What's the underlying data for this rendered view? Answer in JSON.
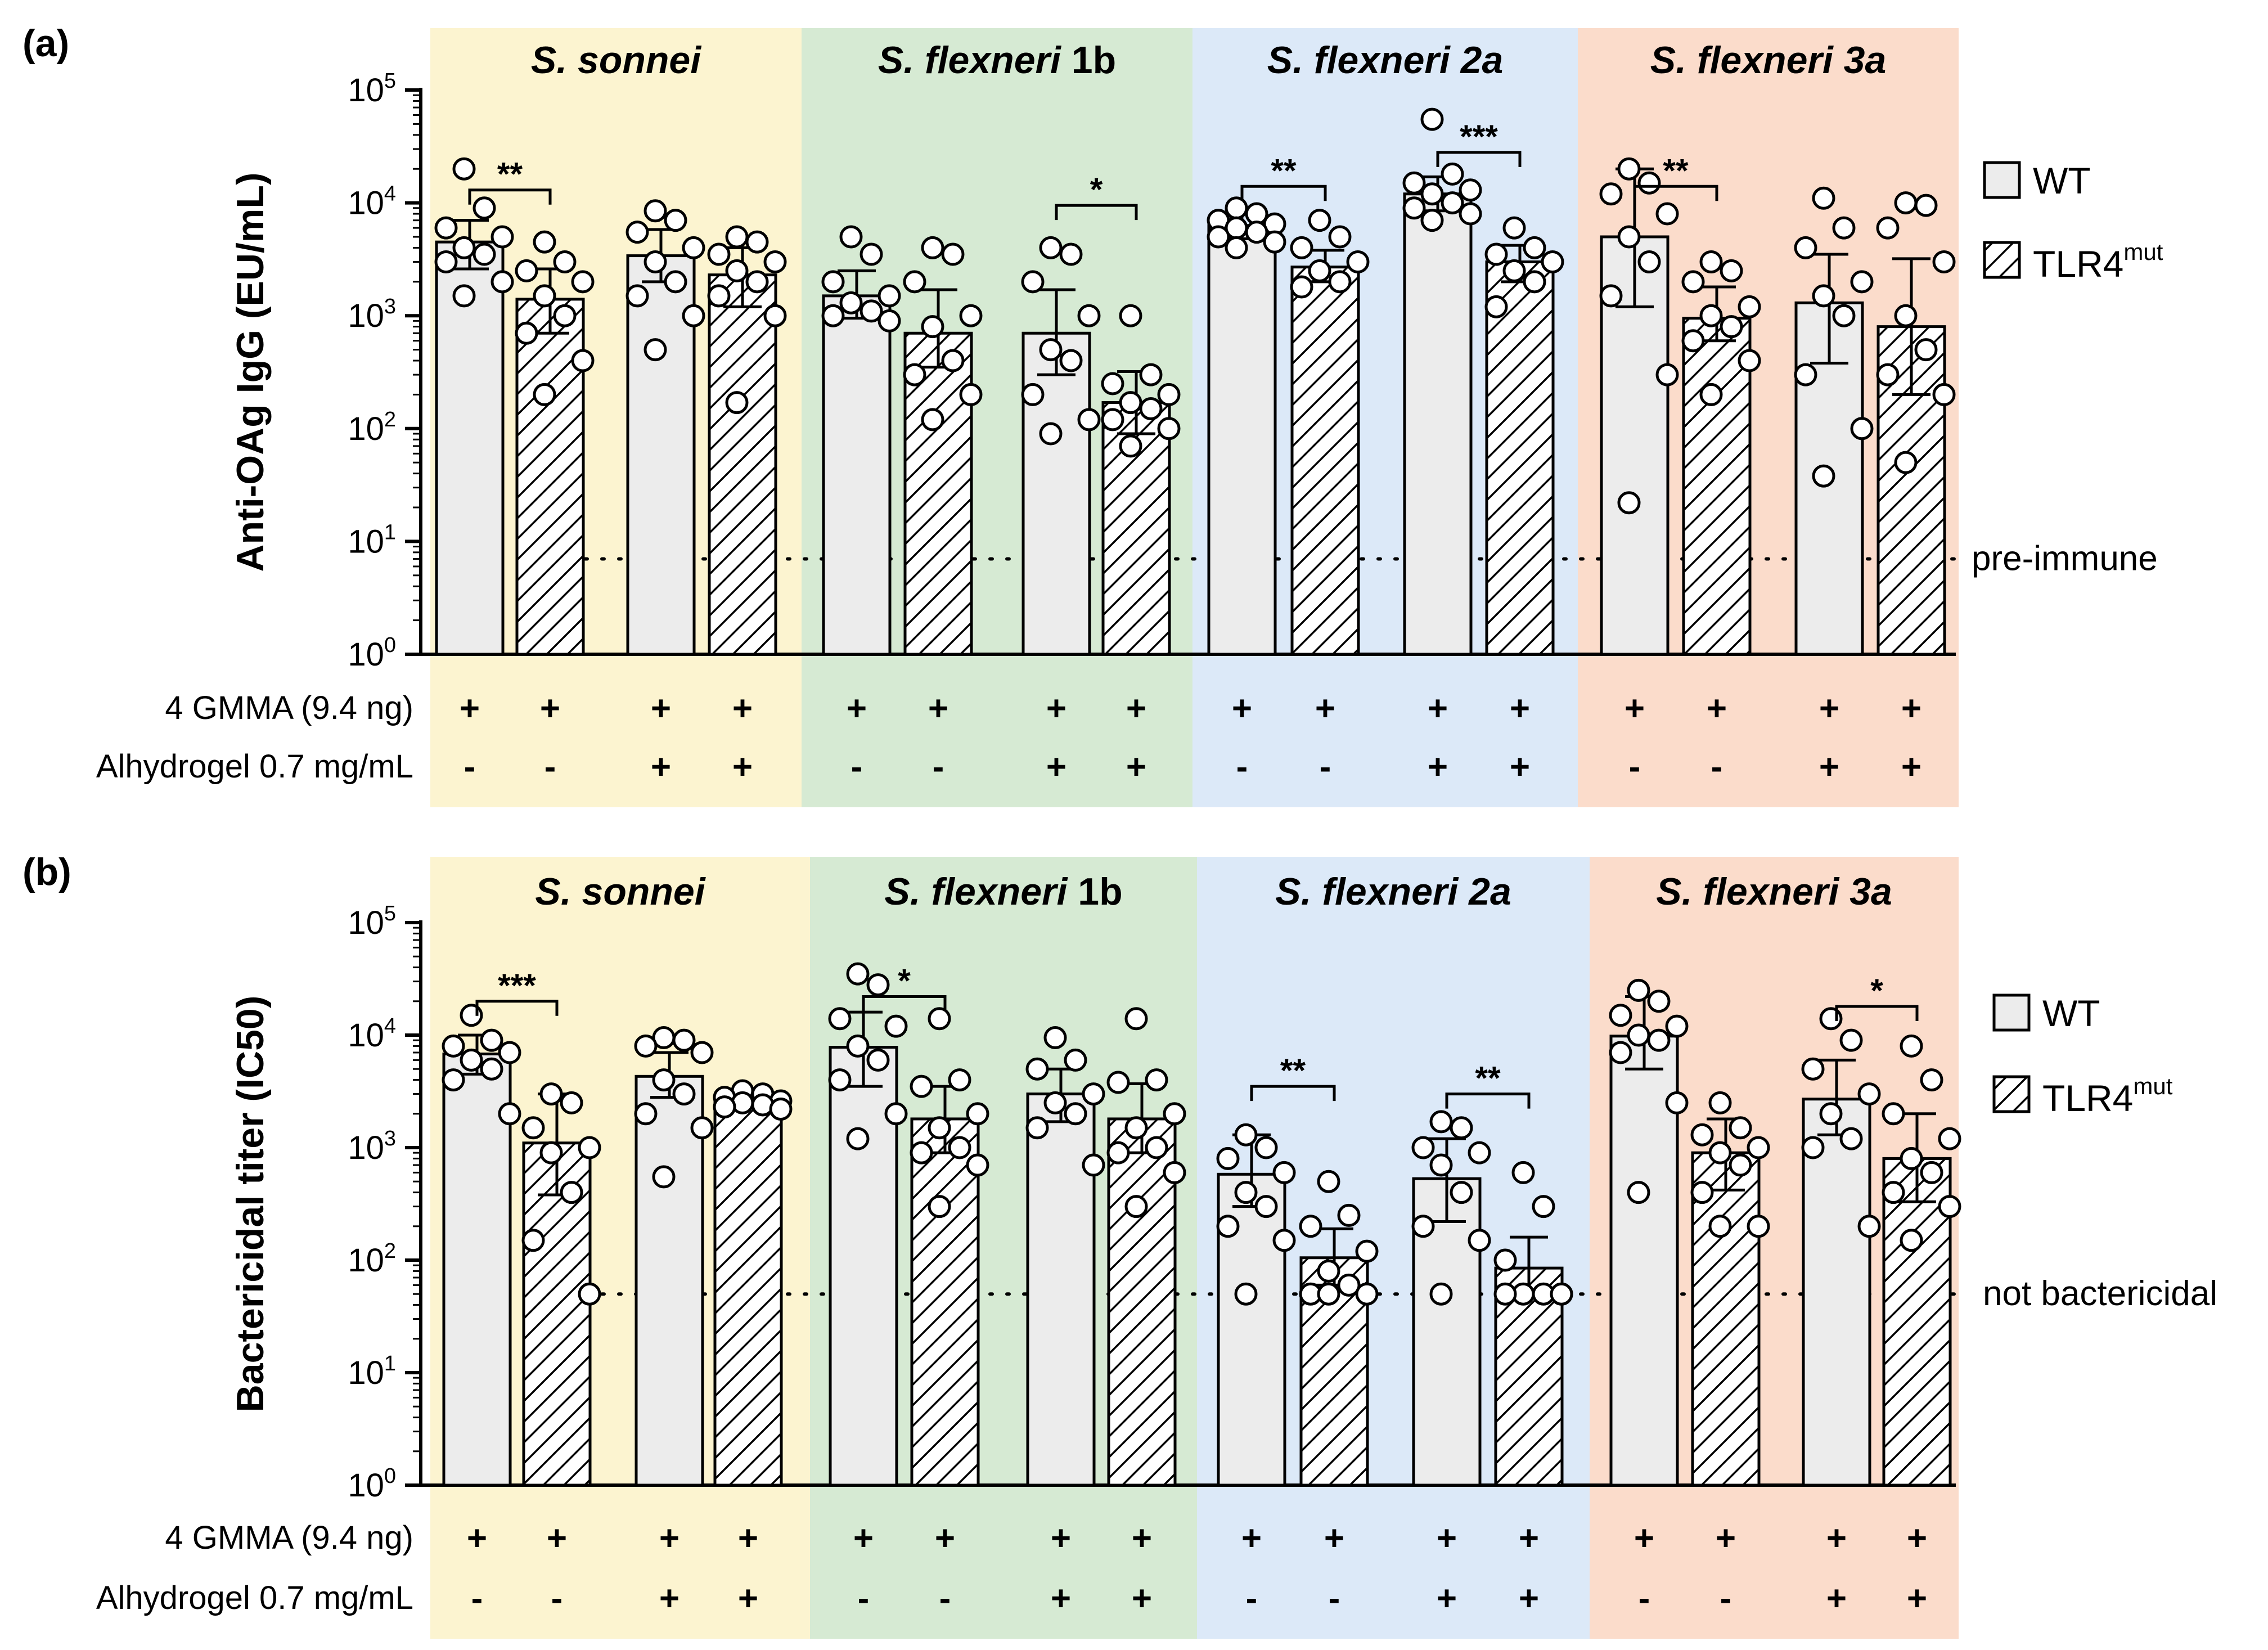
{
  "colors": {
    "sonnei": "#fcf4d0",
    "flex1b": "#d6ead3",
    "flex2a": "#dce9f8",
    "flex3a": "#fbdccb",
    "bar_wt": "#ececec",
    "axis": "#000000"
  },
  "chart_data": [
    {
      "type": "bar",
      "panel": "(a)",
      "ylabel": "Anti-OAg IgG (EU/mL)",
      "yscale": "log",
      "ylim": [
        1,
        100000
      ],
      "yticks": [
        {
          "base": "10",
          "exp": "0"
        },
        {
          "base": "10",
          "exp": "1"
        },
        {
          "base": "10",
          "exp": "2"
        },
        {
          "base": "10",
          "exp": "3"
        },
        {
          "base": "10",
          "exp": "4"
        },
        {
          "base": "10",
          "exp": "5"
        }
      ],
      "reference_line": {
        "value": 7,
        "label": "pre-immune"
      },
      "legend": {
        "wt": "WT",
        "mut_base": "TLR4",
        "mut_sup": "mut"
      },
      "row_labels": [
        "4 GMMA (9.4 ng)",
        "Alhydrogel 0.7 mg/mL"
      ],
      "groups": [
        {
          "species": "S. sonnei",
          "species_italic": "S. sonnei",
          "species_rest": "",
          "color": "sonnei",
          "bars": [
            {
              "genotype": "WT",
              "value": 4500,
              "err": [
                2600,
                7000
              ],
              "points": [
                20000,
                9000,
                6000,
                5000,
                4000,
                3500,
                3000,
                2000,
                1500
              ],
              "gmma": "+",
              "alum": "-"
            },
            {
              "genotype": "TLR4mut",
              "value": 1400,
              "err": [
                700,
                2600
              ],
              "points": [
                4500,
                3000,
                2500,
                2000,
                1500,
                1000,
                700,
                400,
                200
              ],
              "gmma": "+",
              "alum": "-"
            },
            {
              "genotype": "WT",
              "value": 3400,
              "err": [
                2000,
                5800
              ],
              "points": [
                8500,
                7000,
                5500,
                4000,
                3000,
                2000,
                1500,
                1000,
                500
              ],
              "gmma": "+",
              "alum": "+"
            },
            {
              "genotype": "TLR4mut",
              "value": 2300,
              "err": [
                1200,
                4000
              ],
              "points": [
                5000,
                4500,
                3500,
                3000,
                2500,
                2000,
                1500,
                1000,
                170
              ],
              "gmma": "+",
              "alum": "+"
            }
          ],
          "sig": [
            {
              "from": 0,
              "to": 1,
              "label": "**",
              "y": 13000
            }
          ]
        },
        {
          "species": "S. flexneri 1b",
          "species_italic": "S. flexneri",
          "species_rest": " 1b",
          "color": "flex1b",
          "bars": [
            {
              "genotype": "WT",
              "value": 1500,
              "err": [
                950,
                2500
              ],
              "points": [
                5000,
                3500,
                2000,
                1500,
                1300,
                1100,
                1000,
                900
              ],
              "gmma": "+",
              "alum": "-"
            },
            {
              "genotype": "TLR4mut",
              "value": 700,
              "err": [
                350,
                1700
              ],
              "points": [
                4000,
                3500,
                2000,
                1000,
                800,
                400,
                300,
                200,
                120
              ],
              "gmma": "+",
              "alum": "-"
            },
            {
              "genotype": "WT",
              "value": 700,
              "err": [
                300,
                1700
              ],
              "points": [
                4000,
                3500,
                2000,
                1000,
                500,
                400,
                200,
                120,
                90
              ],
              "gmma": "+",
              "alum": "+"
            },
            {
              "genotype": "TLR4mut",
              "value": 170,
              "err": [
                90,
                320
              ],
              "points": [
                1000,
                300,
                250,
                200,
                170,
                150,
                120,
                100,
                70
              ],
              "gmma": "+",
              "alum": "+"
            }
          ],
          "sig": [
            {
              "from": 2,
              "to": 3,
              "label": "*",
              "y": 9500
            }
          ]
        },
        {
          "species": "S. flexneri 2a",
          "species_italic": "S. flexneri 2a",
          "species_rest": "",
          "color": "flex2a",
          "bars": [
            {
              "genotype": "WT",
              "value": 6300,
              "err": [
                4800,
                8000
              ],
              "points": [
                9000,
                8000,
                7000,
                6500,
                6000,
                5500,
                5000,
                4500,
                4000
              ],
              "gmma": "+",
              "alum": "-"
            },
            {
              "genotype": "TLR4mut",
              "value": 2700,
              "err": [
                2000,
                3800
              ],
              "points": [
                7000,
                5000,
                4000,
                3000,
                2500,
                2000,
                1800
              ],
              "gmma": "+",
              "alum": "-"
            },
            {
              "genotype": "WT",
              "value": 12000,
              "err": [
                8500,
                17000
              ],
              "points": [
                55000,
                18000,
                15000,
                13000,
                12000,
                10000,
                9000,
                8000,
                7000
              ],
              "gmma": "+",
              "alum": "+"
            },
            {
              "genotype": "TLR4mut",
              "value": 3000,
              "err": [
                2000,
                4200
              ],
              "points": [
                6000,
                4000,
                3500,
                3000,
                2500,
                2000,
                1200
              ],
              "gmma": "+",
              "alum": "+"
            }
          ],
          "sig": [
            {
              "from": 0,
              "to": 1,
              "label": "**",
              "y": 14000
            },
            {
              "from": 2,
              "to": 3,
              "label": "***",
              "y": 28000
            }
          ]
        },
        {
          "species": "S. flexneri 3a",
          "species_italic": "S. flexneri 3a",
          "species_rest": "",
          "color": "flex3a",
          "bars": [
            {
              "genotype": "WT",
              "value": 5000,
              "err": [
                1200,
                20000
              ],
              "points": [
                20000,
                15000,
                12000,
                8000,
                5000,
                3000,
                1500,
                300,
                22
              ],
              "gmma": "+",
              "alum": "-"
            },
            {
              "genotype": "TLR4mut",
              "value": 950,
              "err": [
                600,
                1800
              ],
              "points": [
                3000,
                2500,
                2000,
                1200,
                1000,
                800,
                600,
                400,
                200
              ],
              "gmma": "+",
              "alum": "-"
            },
            {
              "genotype": "WT",
              "value": 1300,
              "err": [
                380,
                3500
              ],
              "points": [
                11000,
                6000,
                4000,
                2000,
                1500,
                1000,
                300,
                100,
                38
              ],
              "gmma": "+",
              "alum": "+"
            },
            {
              "genotype": "TLR4mut",
              "value": 800,
              "err": [
                200,
                3200
              ],
              "points": [
                10000,
                9500,
                6000,
                3000,
                1000,
                500,
                300,
                200,
                50
              ],
              "gmma": "+",
              "alum": "+"
            }
          ],
          "sig": [
            {
              "from": 0,
              "to": 1,
              "label": "**",
              "y": 14000
            }
          ]
        }
      ]
    },
    {
      "type": "bar",
      "panel": "(b)",
      "ylabel": "Bactericidal titer (IC50)",
      "yscale": "log",
      "ylim": [
        1,
        100000
      ],
      "yticks": [
        {
          "base": "10",
          "exp": "0"
        },
        {
          "base": "10",
          "exp": "1"
        },
        {
          "base": "10",
          "exp": "2"
        },
        {
          "base": "10",
          "exp": "3"
        },
        {
          "base": "10",
          "exp": "4"
        },
        {
          "base": "10",
          "exp": "5"
        }
      ],
      "reference_line": {
        "value": 50,
        "label": "not bactericidal"
      },
      "legend": {
        "wt": "WT",
        "mut_base": "TLR4",
        "mut_sup": "mut"
      },
      "row_labels": [
        "4 GMMA (9.4 ng)",
        "Alhydrogel 0.7 mg/mL"
      ],
      "groups": [
        {
          "species": "S. sonnei",
          "species_italic": "S. sonnei",
          "species_rest": "",
          "color": "sonnei",
          "bars": [
            {
              "genotype": "WT",
              "value": 6800,
              "err": [
                4500,
                10000
              ],
              "points": [
                15000,
                9000,
                8000,
                7000,
                6000,
                5000,
                4000,
                2000
              ],
              "gmma": "+",
              "alum": "-"
            },
            {
              "genotype": "TLR4mut",
              "value": 1100,
              "err": [
                380,
                3000
              ],
              "points": [
                3000,
                2500,
                1500,
                1000,
                900,
                400,
                150,
                50
              ],
              "gmma": "+",
              "alum": "-"
            },
            {
              "genotype": "WT",
              "value": 4300,
              "err": [
                2800,
                7000
              ],
              "points": [
                9500,
                9000,
                8000,
                7000,
                4000,
                3000,
                2000,
                1500,
                550
              ],
              "gmma": "+",
              "alum": "+"
            },
            {
              "genotype": "TLR4mut",
              "value": 2600,
              "err": [
                2300,
                3000
              ],
              "points": [
                3200,
                3000,
                2800,
                2600,
                2500,
                2400,
                2300,
                2200
              ],
              "gmma": "+",
              "alum": "+"
            }
          ],
          "sig": [
            {
              "from": 0,
              "to": 1,
              "label": "***",
              "y": 20000
            }
          ]
        },
        {
          "species": "S. flexneri 1b",
          "species_italic": "S. flexneri",
          "species_rest": " 1b",
          "color": "flex1b",
          "bars": [
            {
              "genotype": "WT",
              "value": 7800,
              "err": [
                3500,
                16000
              ],
              "points": [
                35000,
                28000,
                14000,
                12000,
                8000,
                6000,
                4000,
                2000,
                1200
              ],
              "gmma": "+",
              "alum": "-"
            },
            {
              "genotype": "TLR4mut",
              "value": 1800,
              "err": [
                900,
                3500
              ],
              "points": [
                14000,
                4000,
                3500,
                2000,
                1500,
                1000,
                900,
                700,
                300
              ],
              "gmma": "+",
              "alum": "-"
            },
            {
              "genotype": "WT",
              "value": 3000,
              "err": [
                1700,
                5000
              ],
              "points": [
                9500,
                6000,
                5000,
                3000,
                2500,
                2000,
                1500,
                700
              ],
              "gmma": "+",
              "alum": "+"
            },
            {
              "genotype": "TLR4mut",
              "value": 1800,
              "err": [
                900,
                3700
              ],
              "points": [
                14000,
                4000,
                3800,
                2000,
                1500,
                1000,
                900,
                600,
                300
              ],
              "gmma": "+",
              "alum": "+"
            }
          ],
          "sig": [
            {
              "from": 0,
              "to": 1,
              "label": "*",
              "y": 22000
            }
          ]
        },
        {
          "species": "S. flexneri 2a",
          "species_italic": "S. flexneri 2a",
          "species_rest": "",
          "color": "flex2a",
          "bars": [
            {
              "genotype": "WT",
              "value": 580,
              "err": [
                300,
                1300
              ],
              "points": [
                1300,
                1000,
                800,
                600,
                400,
                300,
                200,
                150,
                50
              ],
              "gmma": "+",
              "alum": "-"
            },
            {
              "genotype": "TLR4mut",
              "value": 105,
              "err": [
                60,
                190
              ],
              "points": [
                500,
                250,
                200,
                120,
                80,
                60,
                50,
                50,
                50
              ],
              "gmma": "+",
              "alum": "-"
            },
            {
              "genotype": "WT",
              "value": 530,
              "err": [
                220,
                1200
              ],
              "points": [
                1700,
                1500,
                1000,
                900,
                700,
                400,
                200,
                150,
                50
              ],
              "gmma": "+",
              "alum": "+"
            },
            {
              "genotype": "TLR4mut",
              "value": 85,
              "err": [
                50,
                160
              ],
              "points": [
                600,
                300,
                100,
                50,
                50,
                50,
                50,
                50
              ],
              "gmma": "+",
              "alum": "+"
            }
          ],
          "sig": [
            {
              "from": 0,
              "to": 1,
              "label": "**",
              "y": 3500
            },
            {
              "from": 2,
              "to": 3,
              "label": "**",
              "y": 3000
            }
          ]
        },
        {
          "species": "S. flexneri 3a",
          "species_italic": "S. flexneri 3a",
          "species_rest": "",
          "color": "flex3a",
          "bars": [
            {
              "genotype": "WT",
              "value": 9800,
              "err": [
                5000,
                22000
              ],
              "points": [
                25000,
                20000,
                15000,
                12000,
                10000,
                9000,
                7000,
                2500,
                400
              ],
              "gmma": "+",
              "alum": "-"
            },
            {
              "genotype": "TLR4mut",
              "value": 900,
              "err": [
                420,
                1800
              ],
              "points": [
                2500,
                1500,
                1300,
                1000,
                900,
                700,
                400,
                200,
                200
              ],
              "gmma": "+",
              "alum": "-"
            },
            {
              "genotype": "WT",
              "value": 2700,
              "err": [
                1300,
                6000
              ],
              "points": [
                14000,
                9000,
                5000,
                3000,
                2000,
                1200,
                1000,
                200
              ],
              "gmma": "+",
              "alum": "+"
            },
            {
              "genotype": "TLR4mut",
              "value": 800,
              "err": [
                330,
                2000
              ],
              "points": [
                8000,
                4000,
                2000,
                1200,
                800,
                600,
                400,
                300,
                150
              ],
              "gmma": "+",
              "alum": "+"
            }
          ],
          "sig": [
            {
              "from": 2,
              "to": 3,
              "label": "*",
              "y": 18000
            }
          ]
        }
      ]
    }
  ]
}
